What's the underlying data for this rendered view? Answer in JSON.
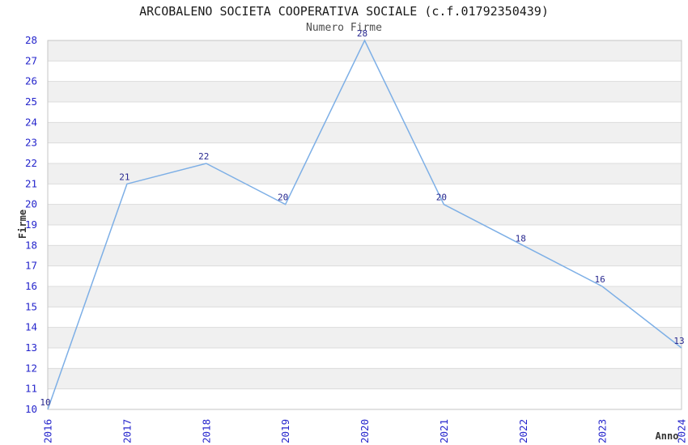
{
  "chart_data": {
    "type": "line",
    "title": "ARCOBALENO SOCIETA COOPERATIVA SOCIALE (c.f.01792350439)",
    "subtitle": "Numero Firme",
    "categories": [
      "2016",
      "2017",
      "2018",
      "2019",
      "2020",
      "2021",
      "2022",
      "2023",
      "2024"
    ],
    "values": [
      10,
      21,
      22,
      20,
      28,
      20,
      18,
      16,
      13
    ],
    "series_name": "Numero Firme",
    "xlabel": "Anno",
    "ylabel": "Firme",
    "ylim": [
      10,
      28
    ],
    "ytick_step": 1,
    "xlim_categories": true,
    "grid": "alternating-horizontal-bands",
    "legend": "none",
    "point_markers": false,
    "point_labels": [
      10,
      21,
      22,
      20,
      28,
      20,
      18,
      16,
      13
    ],
    "colors": {
      "line": "#7DAFE6",
      "point_label": "#27278F",
      "tick_label": "#2525CC",
      "axis_title": "#333333",
      "band": "#F0F0F0",
      "gridline": "#DCDCDC",
      "plot_border": "#C6C6C6",
      "title": "#1A1A1A",
      "subtitle": "#4D4D4D",
      "background": "#FFFFFF"
    }
  }
}
